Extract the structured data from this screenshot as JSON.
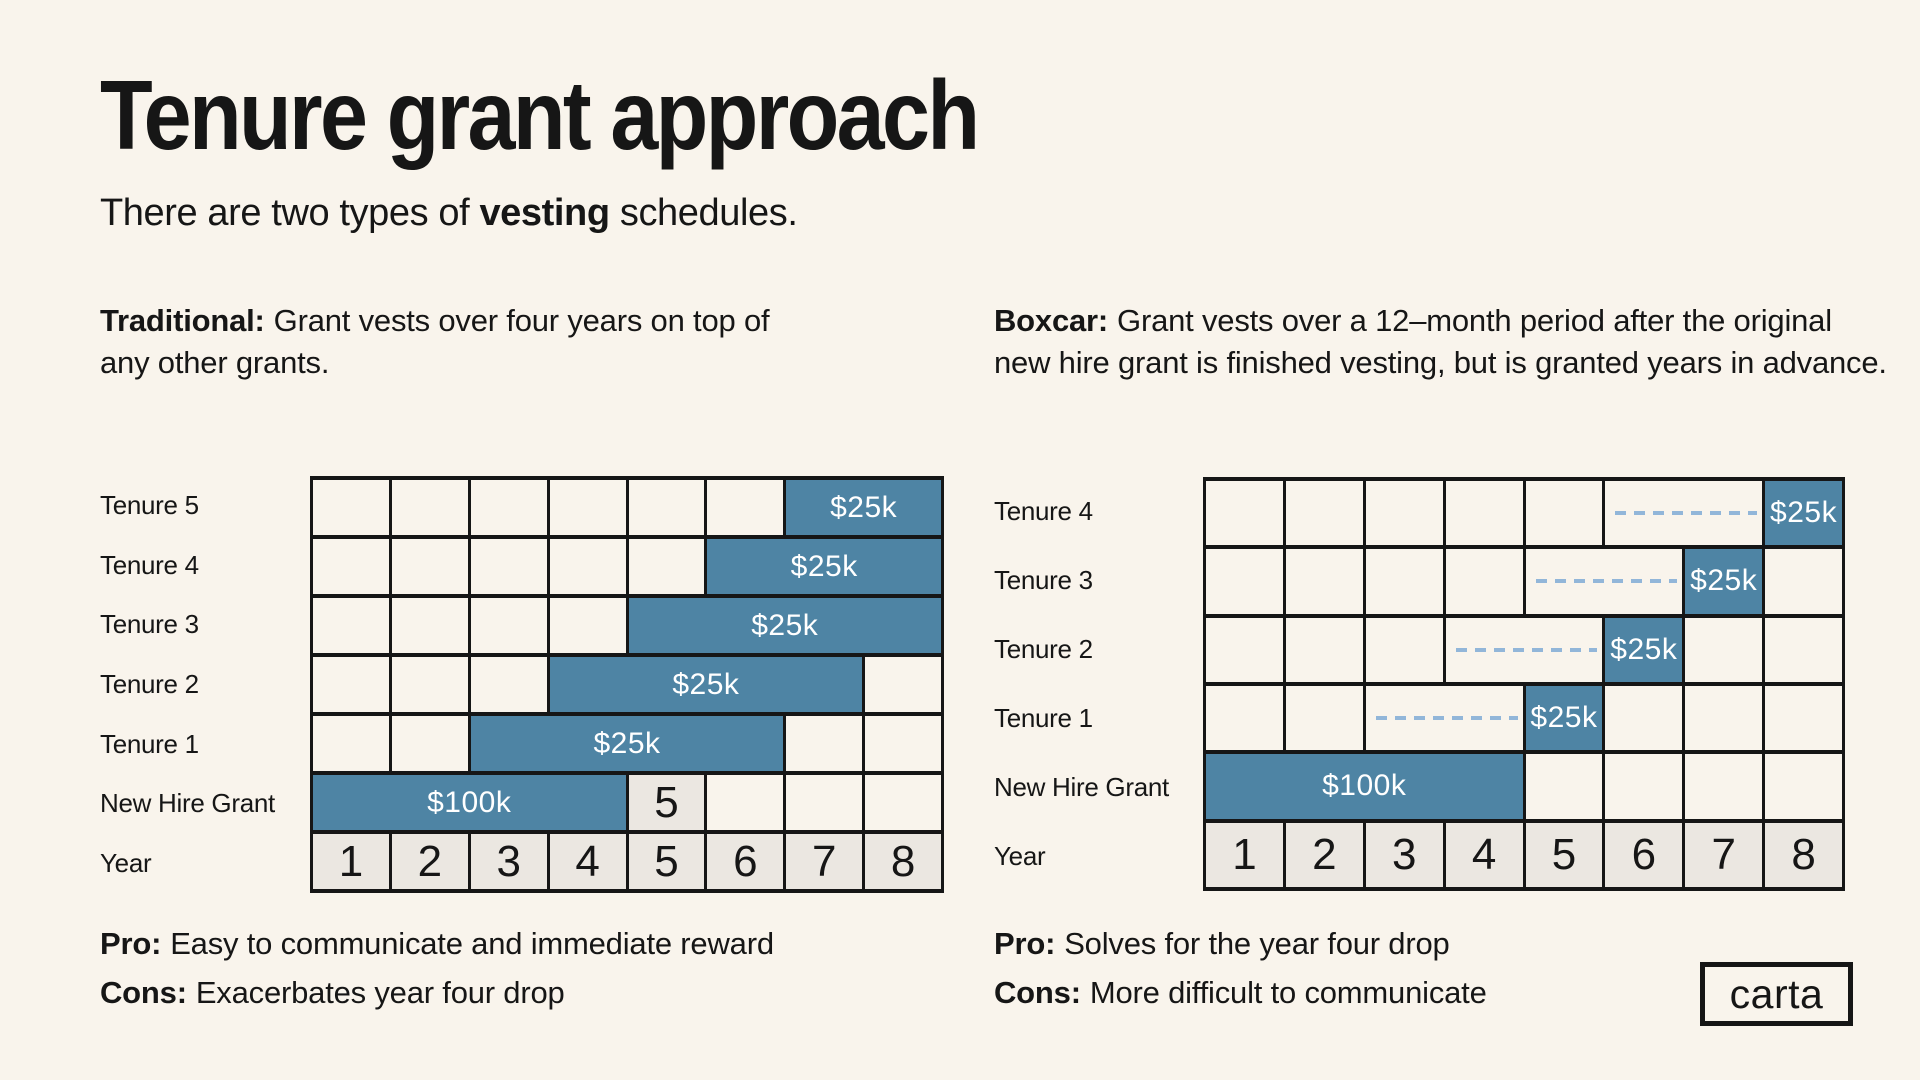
{
  "page": {
    "title": "Tenure grant approach",
    "subtitle_prefix": "There are two types of ",
    "subtitle_bold": "vesting",
    "subtitle_suffix": " schedules."
  },
  "colors": {
    "background": "#f9f4ec",
    "ink": "#161616",
    "grid_line": "#161616",
    "bar_blue": "#4e84a4",
    "dash_blue": "#92b6d9",
    "cell_gray": "#ebe7e1",
    "bar_text": "#ffffff"
  },
  "sections": {
    "traditional": {
      "heading": "Traditional:",
      "body": "Grant vests over four years on top of any other grants."
    },
    "boxcar": {
      "heading": "Boxcar:",
      "body": "Grant vests over a 12–month period after the original new hire grant is finished vesting, but is granted years in advance."
    }
  },
  "charts": [
    {
      "name": "Traditional",
      "type": "vesting-grid",
      "year_axis": [
        "1",
        "2",
        "3",
        "4",
        "5",
        "6",
        "7",
        "8"
      ],
      "rows": [
        {
          "label": "Tenure 5",
          "cells": [
            {
              "t": "empty"
            },
            {
              "t": "empty"
            },
            {
              "t": "empty"
            },
            {
              "t": "empty"
            },
            {
              "t": "empty"
            },
            {
              "t": "empty"
            },
            {
              "t": "bar",
              "s": 2,
              "label": "$25k"
            }
          ]
        },
        {
          "label": "Tenure 4",
          "cells": [
            {
              "t": "empty"
            },
            {
              "t": "empty"
            },
            {
              "t": "empty"
            },
            {
              "t": "empty"
            },
            {
              "t": "empty"
            },
            {
              "t": "bar",
              "s": 3,
              "label": "$25k"
            }
          ]
        },
        {
          "label": "Tenure 3",
          "cells": [
            {
              "t": "empty"
            },
            {
              "t": "empty"
            },
            {
              "t": "empty"
            },
            {
              "t": "empty"
            },
            {
              "t": "bar",
              "s": 4,
              "label": "$25k"
            }
          ]
        },
        {
          "label": "Tenure 2",
          "cells": [
            {
              "t": "empty"
            },
            {
              "t": "empty"
            },
            {
              "t": "empty"
            },
            {
              "t": "bar",
              "s": 4,
              "label": "$25k"
            },
            {
              "t": "empty"
            }
          ]
        },
        {
          "label": "Tenure 1",
          "cells": [
            {
              "t": "empty"
            },
            {
              "t": "empty"
            },
            {
              "t": "bar",
              "s": 4,
              "label": "$25k"
            },
            {
              "t": "empty"
            },
            {
              "t": "empty"
            }
          ]
        },
        {
          "label": "New Hire Grant",
          "cells": [
            {
              "t": "bar",
              "s": 4,
              "label": "$100k"
            },
            {
              "t": "gray",
              "label": "5"
            },
            {
              "t": "empty"
            },
            {
              "t": "empty"
            },
            {
              "t": "empty"
            }
          ]
        },
        {
          "label": "Year",
          "cells": [
            {
              "t": "year",
              "label": "1"
            },
            {
              "t": "year",
              "label": "2"
            },
            {
              "t": "year",
              "label": "3"
            },
            {
              "t": "year",
              "label": "4"
            },
            {
              "t": "year",
              "label": "5"
            },
            {
              "t": "year",
              "label": "6"
            },
            {
              "t": "year",
              "label": "7"
            },
            {
              "t": "year",
              "label": "8"
            }
          ]
        }
      ]
    },
    {
      "name": "Boxcar",
      "type": "vesting-grid",
      "year_axis": [
        "1",
        "2",
        "3",
        "4",
        "5",
        "6",
        "7",
        "8"
      ],
      "rows": [
        {
          "label": "Tenure 4",
          "cells": [
            {
              "t": "empty"
            },
            {
              "t": "empty"
            },
            {
              "t": "empty"
            },
            {
              "t": "empty"
            },
            {
              "t": "empty"
            },
            {
              "t": "dash",
              "s": 2
            },
            {
              "t": "bar",
              "label": "$25k"
            }
          ]
        },
        {
          "label": "Tenure 3",
          "cells": [
            {
              "t": "empty"
            },
            {
              "t": "empty"
            },
            {
              "t": "empty"
            },
            {
              "t": "empty"
            },
            {
              "t": "dash",
              "s": 2
            },
            {
              "t": "bar",
              "label": "$25k"
            },
            {
              "t": "empty"
            }
          ]
        },
        {
          "label": "Tenure 2",
          "cells": [
            {
              "t": "empty"
            },
            {
              "t": "empty"
            },
            {
              "t": "empty"
            },
            {
              "t": "dash",
              "s": 2
            },
            {
              "t": "bar",
              "label": "$25k"
            },
            {
              "t": "empty"
            },
            {
              "t": "empty"
            }
          ]
        },
        {
          "label": "Tenure 1",
          "cells": [
            {
              "t": "empty"
            },
            {
              "t": "empty"
            },
            {
              "t": "dash",
              "s": 2
            },
            {
              "t": "bar",
              "label": "$25k"
            },
            {
              "t": "empty"
            },
            {
              "t": "empty"
            },
            {
              "t": "empty"
            }
          ]
        },
        {
          "label": "New Hire Grant",
          "cells": [
            {
              "t": "bar",
              "s": 4,
              "label": "$100k"
            },
            {
              "t": "empty"
            },
            {
              "t": "empty"
            },
            {
              "t": "empty"
            },
            {
              "t": "empty"
            }
          ]
        },
        {
          "label": "Year",
          "cells": [
            {
              "t": "year",
              "label": "1"
            },
            {
              "t": "year",
              "label": "2"
            },
            {
              "t": "year",
              "label": "3"
            },
            {
              "t": "year",
              "label": "4"
            },
            {
              "t": "year",
              "label": "5"
            },
            {
              "t": "year",
              "label": "6"
            },
            {
              "t": "year",
              "label": "7"
            },
            {
              "t": "year",
              "label": "8"
            }
          ]
        }
      ]
    }
  ],
  "footers": {
    "traditional": {
      "pro_label": "Pro:",
      "pro": "Easy to communicate and immediate reward",
      "cons_label": "Cons:",
      "cons": "Exacerbates year four drop"
    },
    "boxcar": {
      "pro_label": "Pro:",
      "pro": "Solves for the year four drop",
      "cons_label": "Cons:",
      "cons": "More difficult to communicate"
    }
  },
  "logo": {
    "text": "carta"
  }
}
